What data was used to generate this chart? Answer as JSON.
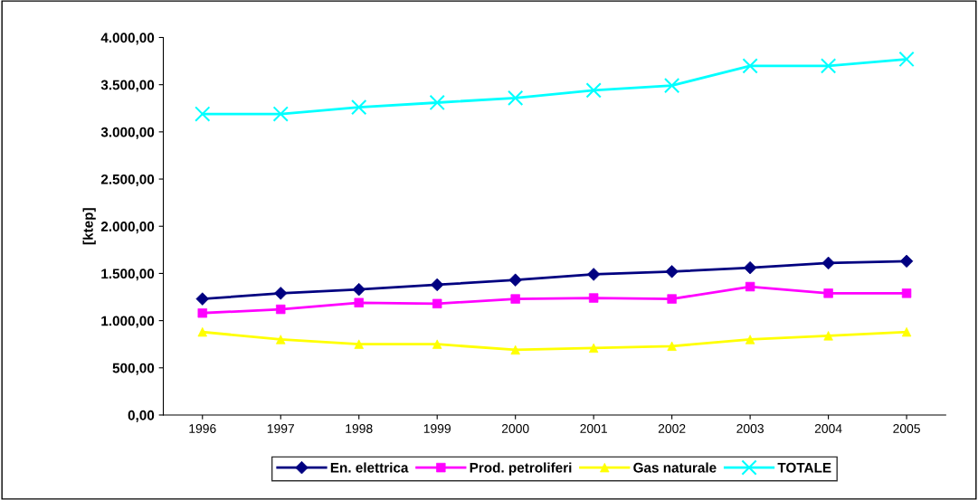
{
  "chart_data": {
    "type": "line",
    "ylabel": "[ktep]",
    "categories": [
      "1996",
      "1997",
      "1998",
      "1999",
      "2000",
      "2001",
      "2002",
      "2003",
      "2004",
      "2005"
    ],
    "series": [
      {
        "name": "En. elettrica",
        "color": "#000080",
        "marker": "diamond",
        "values": [
          1230,
          1290,
          1330,
          1380,
          1430,
          1490,
          1520,
          1560,
          1610,
          1630
        ]
      },
      {
        "name": "Prod. petroliferi",
        "color": "#ff00ff",
        "marker": "square",
        "values": [
          1080,
          1120,
          1190,
          1180,
          1230,
          1240,
          1230,
          1360,
          1290,
          1290
        ]
      },
      {
        "name": "Gas naturale",
        "color": "#ffff00",
        "marker": "triangle",
        "values": [
          880,
          800,
          750,
          750,
          690,
          710,
          730,
          800,
          840,
          880
        ]
      },
      {
        "name": "TOTALE",
        "color": "#00ffff",
        "marker": "cross",
        "values": [
          3190,
          3190,
          3260,
          3310,
          3360,
          3440,
          3490,
          3700,
          3700,
          3770
        ]
      }
    ],
    "ylim": [
      0,
      4000
    ],
    "yticks": [
      {
        "value": 0,
        "label": "0,00"
      },
      {
        "value": 500,
        "label": "500,00"
      },
      {
        "value": 1000,
        "label": "1.000,00"
      },
      {
        "value": 1500,
        "label": "1.500,00"
      },
      {
        "value": 2000,
        "label": "2.000,00"
      },
      {
        "value": 2500,
        "label": "2.500,00"
      },
      {
        "value": 3000,
        "label": "3.000,00"
      },
      {
        "value": 3500,
        "label": "3.500,00"
      },
      {
        "value": 4000,
        "label": "4.000,00"
      }
    ],
    "grid": false,
    "legend": "bottom",
    "line_style": "solid"
  }
}
